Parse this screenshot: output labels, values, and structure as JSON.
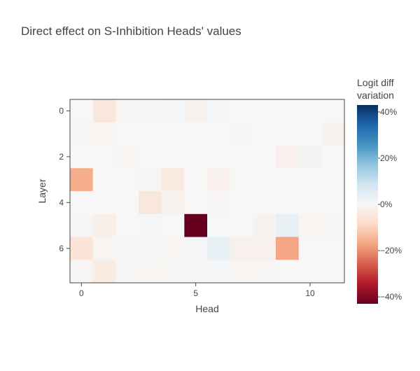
{
  "chart_data": {
    "type": "heatmap",
    "title": "Direct effect on S-Inhibition Heads' values",
    "xlabel": "Head",
    "ylabel": "Layer",
    "x_ticks": [
      0,
      5,
      10
    ],
    "y_ticks": [
      0,
      2,
      4,
      6
    ],
    "x_tick_labels": [
      "0",
      "5",
      "10"
    ],
    "y_tick_labels": [
      "0",
      "2",
      "4",
      "6"
    ],
    "n_heads": 12,
    "n_layers": 8,
    "colorbar": {
      "title_lines": [
        "Logit diff",
        "variation"
      ],
      "range": [
        -0.43,
        0.43
      ],
      "ticks": [
        0.4,
        0.2,
        0,
        -0.2,
        -0.4
      ],
      "tick_labels": [
        "40%",
        "20%",
        "0%",
        "−20%",
        "−40%"
      ],
      "colorscale": [
        [
          0.0,
          "#67001f"
        ],
        [
          0.1,
          "#b2182b"
        ],
        [
          0.2,
          "#d6604d"
        ],
        [
          0.3,
          "#f4a582"
        ],
        [
          0.4,
          "#fddbc7"
        ],
        [
          0.5,
          "#f7f7f7"
        ],
        [
          0.6,
          "#d1e5f0"
        ],
        [
          0.7,
          "#92c5de"
        ],
        [
          0.8,
          "#4393c3"
        ],
        [
          0.9,
          "#2166ac"
        ],
        [
          1.0,
          "#053061"
        ]
      ]
    },
    "z": [
      [
        0.0,
        -0.05,
        -0.005,
        -0.002,
        0.01,
        -0.015,
        0.005,
        0.0,
        0.0,
        0.0,
        0.0,
        0.0
      ],
      [
        -0.005,
        -0.01,
        0.0,
        0.0,
        0.0,
        0.0,
        0.0,
        -0.003,
        0.0,
        0.0,
        0.0,
        -0.015
      ],
      [
        0.0,
        0.0,
        -0.01,
        0.0,
        0.0,
        0.0,
        0.0,
        0.0,
        0.0,
        -0.02,
        0.012,
        0.0
      ],
      [
        -0.16,
        0.0,
        0.0,
        -0.005,
        -0.04,
        0.0,
        -0.02,
        0.0,
        0.0,
        0.0,
        0.0,
        0.0
      ],
      [
        0.0,
        0.0,
        0.0,
        -0.05,
        -0.015,
        0.0,
        -0.005,
        0.0,
        0.0,
        0.0,
        0.0,
        0.0
      ],
      [
        -0.005,
        -0.025,
        0.0,
        0.005,
        0.0,
        -0.43,
        0.0,
        0.0,
        -0.015,
        0.035,
        -0.01,
        -0.005
      ],
      [
        -0.06,
        -0.01,
        0.01,
        0.005,
        -0.01,
        0.01,
        0.04,
        -0.02,
        -0.02,
        -0.17,
        0.0,
        0.0
      ],
      [
        -0.005,
        -0.035,
        -0.005,
        -0.01,
        -0.005,
        -0.005,
        0.005,
        -0.01,
        -0.005,
        0.0,
        0.0,
        0.0
      ]
    ]
  }
}
